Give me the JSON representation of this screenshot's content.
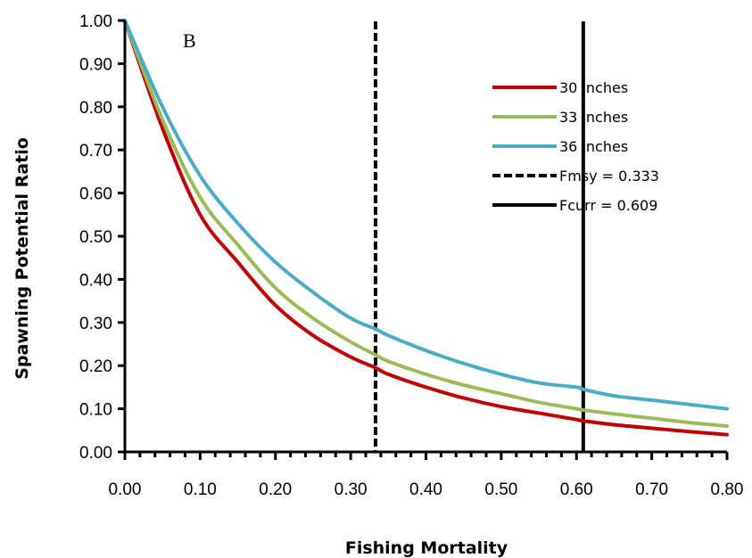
{
  "chart_data": {
    "type": "line",
    "panel_label": "B",
    "xlabel": "Fishing Mortality",
    "ylabel": "Spawning Potential Ratio",
    "xlim": [
      0,
      0.8
    ],
    "ylim": [
      0,
      1.0
    ],
    "x_ticks": [
      "0.00",
      "0.10",
      "0.20",
      "0.30",
      "0.40",
      "0.50",
      "0.60",
      "0.70",
      "0.80"
    ],
    "y_ticks": [
      "0.00",
      "0.10",
      "0.20",
      "0.30",
      "0.40",
      "0.50",
      "0.60",
      "0.70",
      "0.80",
      "0.90",
      "1.00"
    ],
    "grid": false,
    "legend_position": "top-right",
    "series": [
      {
        "name": "30 inches",
        "color": "#c00000",
        "x": [
          0,
          0.05,
          0.1,
          0.15,
          0.2,
          0.25,
          0.3,
          0.333,
          0.35,
          0.4,
          0.45,
          0.5,
          0.55,
          0.6,
          0.609,
          0.65,
          0.7,
          0.75,
          0.8
        ],
        "y": [
          1.0,
          0.75,
          0.55,
          0.44,
          0.34,
          0.27,
          0.22,
          0.195,
          0.18,
          0.15,
          0.125,
          0.105,
          0.09,
          0.075,
          0.072,
          0.063,
          0.055,
          0.047,
          0.04
        ]
      },
      {
        "name": "33 inches",
        "color": "#9bbb59",
        "x": [
          0,
          0.05,
          0.1,
          0.15,
          0.2,
          0.25,
          0.3,
          0.333,
          0.35,
          0.4,
          0.45,
          0.5,
          0.55,
          0.6,
          0.609,
          0.65,
          0.7,
          0.75,
          0.8
        ],
        "y": [
          1.0,
          0.77,
          0.59,
          0.48,
          0.38,
          0.31,
          0.255,
          0.225,
          0.21,
          0.18,
          0.155,
          0.135,
          0.115,
          0.1,
          0.097,
          0.088,
          0.078,
          0.068,
          0.06
        ]
      },
      {
        "name": "36 inches",
        "color": "#4bacc6",
        "x": [
          0,
          0.05,
          0.1,
          0.15,
          0.2,
          0.25,
          0.3,
          0.333,
          0.35,
          0.4,
          0.45,
          0.5,
          0.55,
          0.6,
          0.609,
          0.65,
          0.7,
          0.75,
          0.8
        ],
        "y": [
          1.0,
          0.8,
          0.64,
          0.53,
          0.44,
          0.37,
          0.31,
          0.285,
          0.27,
          0.235,
          0.205,
          0.18,
          0.16,
          0.15,
          0.145,
          0.13,
          0.12,
          0.11,
          0.1
        ]
      }
    ],
    "reference_lines": [
      {
        "name": "Fmsy = 0.333",
        "x": 0.333,
        "style": "dashed",
        "color": "#000000"
      },
      {
        "name": "Fcurr = 0.609",
        "x": 0.609,
        "style": "solid",
        "color": "#000000"
      }
    ]
  }
}
